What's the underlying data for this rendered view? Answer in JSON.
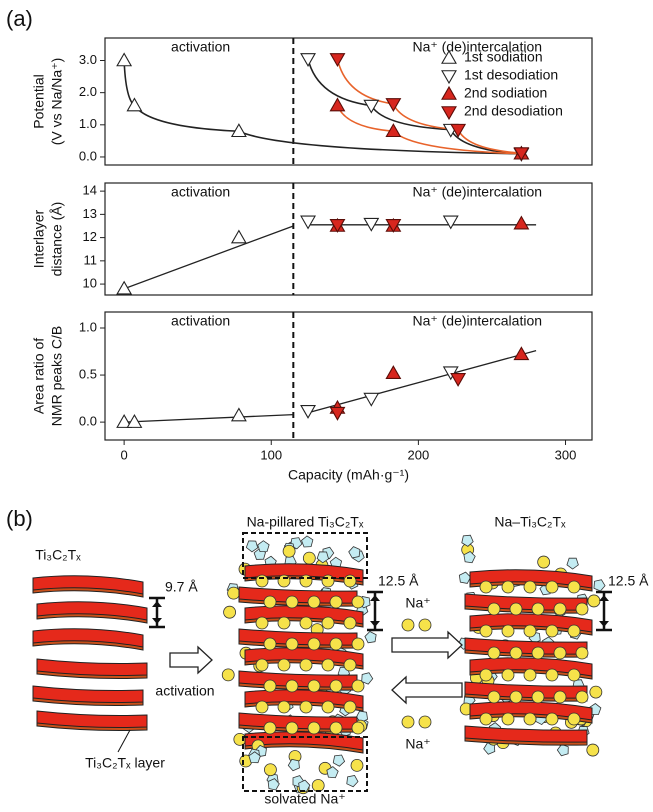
{
  "panel_labels": [
    "(a)",
    "(b)"
  ],
  "chart_data": [
    {
      "type": "line",
      "ylabel": [
        "Potential",
        "(V vs Na/Na⁺)"
      ],
      "annotations": [
        "activation",
        "Na⁺ (de)intercalation"
      ],
      "divider": 115,
      "xlim": [
        -13,
        318
      ],
      "ylim": [
        -0.25,
        3.7
      ],
      "yticks": [
        {
          "value": 0,
          "label": "0.0"
        },
        {
          "value": 1,
          "label": "1.0"
        },
        {
          "value": 2,
          "label": "2.0"
        },
        {
          "value": 3,
          "label": "3.0"
        }
      ],
      "legend": "upper right",
      "series": [
        {
          "name": "1st sodiation",
          "marker": "up",
          "color": "#ffffff",
          "line_color": "#222222",
          "x": [
            0,
            7,
            78,
            270
          ],
          "values": [
            3.0,
            1.6,
            0.8,
            0.1
          ]
        },
        {
          "name": "1st desodiation",
          "marker": "down",
          "color": "#ffffff",
          "line_color": "#222222",
          "x": [
            125,
            168,
            222,
            270
          ],
          "values": [
            3.05,
            1.6,
            0.85,
            0.1
          ]
        },
        {
          "name": "2nd sodiation",
          "marker": "up",
          "color": "#d7261e",
          "line_color": "#e8632b",
          "x": [
            145,
            183,
            270
          ],
          "values": [
            1.6,
            0.8,
            0.1
          ]
        },
        {
          "name": "2nd desodiation",
          "marker": "down",
          "color": "#d7261e",
          "line_color": "#e8632b",
          "x": [
            145,
            183,
            227,
            270
          ],
          "values": [
            3.05,
            1.65,
            0.85,
            0.12
          ]
        }
      ]
    },
    {
      "type": "scatter",
      "ylabel": [
        "Interlayer",
        "distance (Å)"
      ],
      "annotations": [
        "activation",
        "Na⁺ (de)intercalation"
      ],
      "divider": 115,
      "xlim": [
        -13,
        318
      ],
      "ylim": [
        9.53,
        14.35
      ],
      "yticks": [
        10,
        11,
        12,
        13,
        14
      ],
      "series": [
        {
          "marker": "up",
          "color": "#ffffff",
          "x": [
            0,
            78
          ],
          "values": [
            9.8,
            12.0
          ]
        },
        {
          "marker": "down",
          "color": "#ffffff",
          "x": [
            125,
            168,
            222
          ],
          "values": [
            12.7,
            12.6,
            12.7
          ]
        },
        {
          "marker": "up",
          "color": "#d7261e",
          "x": [
            145,
            183,
            270
          ],
          "values": [
            12.5,
            12.5,
            12.6
          ]
        },
        {
          "marker": "down",
          "color": "#d7261e",
          "x": [
            145,
            183
          ],
          "values": [
            12.55,
            12.55
          ]
        }
      ],
      "fit_lines": [
        {
          "x": [
            0,
            115
          ],
          "values": [
            9.8,
            12.5
          ]
        },
        {
          "x": [
            125,
            280
          ],
          "values": [
            12.55,
            12.55
          ]
        }
      ]
    },
    {
      "type": "scatter",
      "ylabel": [
        "Area ratio of",
        "NMR peaks C/B"
      ],
      "annotations": [
        "activation",
        "Na⁺ (de)intercalation"
      ],
      "divider": 115,
      "xlabel": "Capacity (mAh·g⁻¹)",
      "xlim": [
        -13,
        318
      ],
      "xticks": [
        0,
        100,
        200,
        300
      ],
      "ylim": [
        -0.19,
        1.17
      ],
      "yticks": [
        {
          "value": 0,
          "label": "0.0"
        },
        {
          "value": 0.5,
          "label": "0.5"
        },
        {
          "value": 1,
          "label": "1.0"
        }
      ],
      "series": [
        {
          "marker": "up",
          "color": "#ffffff",
          "x": [
            0,
            7,
            78
          ],
          "values": [
            0.0,
            0.0,
            0.07
          ]
        },
        {
          "marker": "down",
          "color": "#ffffff",
          "x": [
            125,
            168,
            222
          ],
          "values": [
            0.12,
            0.25,
            0.53
          ]
        },
        {
          "marker": "up",
          "color": "#d7261e",
          "x": [
            145,
            183,
            270
          ],
          "values": [
            0.15,
            0.52,
            0.72
          ]
        },
        {
          "marker": "down",
          "color": "#d7261e",
          "x": [
            145,
            227
          ],
          "values": [
            0.1,
            0.46
          ]
        }
      ],
      "fit_lines": [
        {
          "x": [
            0,
            115
          ],
          "values": [
            0.0,
            0.08
          ]
        },
        {
          "x": [
            125,
            280
          ],
          "values": [
            0.1,
            0.76
          ]
        }
      ]
    }
  ],
  "diagram": {
    "pristine": {
      "title": "Ti₃C₂Tₓ",
      "spacing": "9.7 Å",
      "layer_label": "Ti₃C₂Tₓ layer"
    },
    "arrow_label": "activation",
    "pillared": {
      "title": "Na-pillared Ti₃C₂Tₓ",
      "spacing": "12.5 Å",
      "bottom_label": "solvated Na⁺"
    },
    "ion_in": "Na⁺",
    "ion_out": "Na⁺",
    "intercalated": {
      "title": "Na–Ti₃C₂Tₓ",
      "spacing": "12.5 Å"
    }
  }
}
